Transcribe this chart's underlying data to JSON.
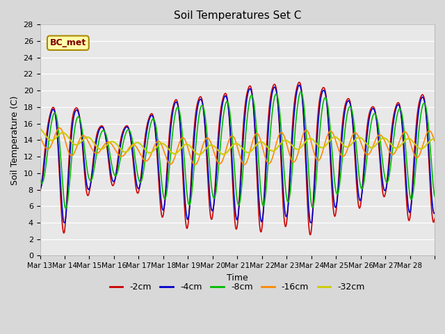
{
  "title": "Soil Temperatures Set C",
  "xlabel": "Time",
  "ylabel": "Soil Temperature (C)",
  "ylim": [
    0,
    28
  ],
  "yticks": [
    0,
    2,
    4,
    6,
    8,
    10,
    12,
    14,
    16,
    18,
    20,
    22,
    24,
    26,
    28
  ],
  "annotation": "BC_met",
  "fig_facecolor": "#d8d8d8",
  "plot_facecolor": "#e8e8e8",
  "series_colors": {
    "-2cm": "#cc0000",
    "-4cm": "#0000cc",
    "-8cm": "#00bb00",
    "-16cm": "#ff8800",
    "-32cm": "#cccc00"
  },
  "x_tick_labels": [
    "Mar 13",
    "Mar 14",
    "Mar 15",
    "Mar 16",
    "Mar 17",
    "Mar 18",
    "Mar 19",
    "Mar 20",
    "Mar 21",
    "Mar 22",
    "Mar 23",
    "Mar 24",
    "Mar 25",
    "Mar 26",
    "Mar 27",
    "Mar 28"
  ]
}
